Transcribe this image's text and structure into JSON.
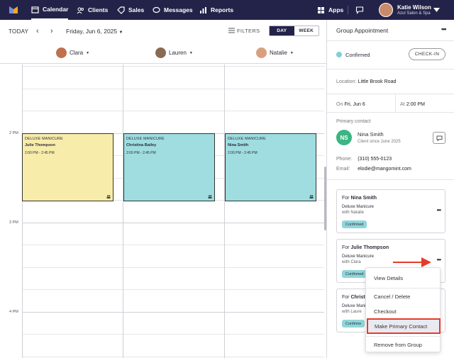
{
  "nav": {
    "items": [
      {
        "label": "Calendar",
        "icon": "calendar-icon",
        "active": true
      },
      {
        "label": "Clients",
        "icon": "clients-icon"
      },
      {
        "label": "Sales",
        "icon": "tag-icon"
      },
      {
        "label": "Messages",
        "icon": "chat-icon"
      },
      {
        "label": "Reports",
        "icon": "chart-icon"
      }
    ],
    "apps_label": "Apps",
    "user_name": "Katie Wilson",
    "user_business": "Azul Salon & Spa"
  },
  "toolbar": {
    "today": "TODAY",
    "date": "Friday, Jun 6, 2025",
    "filters": "FILTERS",
    "view_day": "DAY",
    "view_week": "WEEK"
  },
  "staff": [
    "Clara",
    "Lauren",
    "Natalie"
  ],
  "times": [
    "2 PM",
    "3 PM",
    "4 PM"
  ],
  "appointments": [
    {
      "service": "DELUXE MANICURE",
      "client": "Julie Thompson",
      "time": "2:00 PM - 2:45 PM",
      "color": "#f8ecab"
    },
    {
      "service": "DELUXE MANICURE",
      "client": "Christina Bailey",
      "time": "2:00 PM - 2:45 PM",
      "color": "#9fdde0"
    },
    {
      "service": "DELUXE MANICURE",
      "client": "Nina Smith",
      "time": "2:00 PM - 2:45 PM",
      "color": "#9fdde0"
    }
  ],
  "panel": {
    "title": "Group Appointment",
    "status": "Confirmed",
    "checkin": "CHECK-IN",
    "location_label": "Location:",
    "location": "Little Brook Road",
    "on_label": "On",
    "date": "Fri, Jun 6",
    "at_label": "At",
    "time": "2:00 PM",
    "primary_label": "Primary contact",
    "initials": "NS",
    "contact_name": "Nina Smith",
    "contact_since": "Client since June 2025",
    "phone_label": "Phone:",
    "phone": "(310) 555-0123",
    "email_label": "Email:",
    "email": "elodie@mangomint.com"
  },
  "cards": [
    {
      "for": "For",
      "name": "Nina Smith",
      "service": "Deluxe Manicure",
      "with": "with Natalie",
      "status": "Confirmed"
    },
    {
      "for": "For",
      "name": "Julie Thompson",
      "service": "Deluxe Manicure",
      "with": "with Clara",
      "status": "Confirmed"
    },
    {
      "for": "For",
      "name": "Christi",
      "service": "Deluxe Mani",
      "with": "with Laure",
      "status": "Confirme"
    }
  ],
  "menu": [
    "View Details",
    "Cancel / Delete",
    "Checkout",
    "Make Primary Contact",
    "Remove from Group"
  ],
  "colors": {
    "nav_bg": "#23234a",
    "confirmed": "#7fcfd6",
    "highlight": "#e53b2c"
  }
}
